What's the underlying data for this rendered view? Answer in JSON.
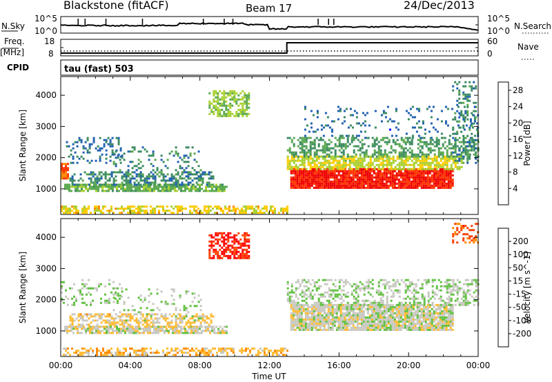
{
  "header": {
    "title": "Blackstone (fitACF)",
    "beam": "Beam 17",
    "date": "24/Dec/2013"
  },
  "noise_panel": {
    "left_label": "N.Sky",
    "left_ticks": [
      "10^5",
      "10^0"
    ],
    "right_ticks": [
      "10^5",
      "10^0"
    ],
    "right_label": "N.Search"
  },
  "freq_panel": {
    "left_label_top": "Freq.",
    "left_label_unit": "[MHz]",
    "left_ticks": [
      "18",
      "8"
    ],
    "right_ticks": [
      "60",
      "0"
    ],
    "right_label": "Nave"
  },
  "cpid": {
    "label": "CPID",
    "value": "tau (fast) 503"
  },
  "x_axis": {
    "label": "Time UT",
    "ticks": [
      "00:00",
      "04:00",
      "08:00",
      "12:00",
      "16:00",
      "20:00",
      "00:00"
    ]
  },
  "colors": {
    "power_scale": [
      "#0000ff",
      "#2060b0",
      "#3a8a60",
      "#5aa850",
      "#a8d030",
      "#ffcc00",
      "#ff8800",
      "#ff3300",
      "#ee0000"
    ],
    "velocity_scale": [
      "#ff0000",
      "#ff4000",
      "#ff8800",
      "#ffbb33",
      "#c8c8c0",
      "#60c040",
      "#308050",
      "#2050b0",
      "#1010cc"
    ]
  },
  "chart_data": [
    {
      "type": "heatmap",
      "panel": "power",
      "ylabel": "Slant Range [km]",
      "yticks": [
        1000,
        2000,
        3000,
        4000
      ],
      "ylim": [
        180,
        4600
      ],
      "xlim": [
        0,
        24
      ],
      "colorbar": {
        "label": "Power [dB]",
        "ticks": [
          4,
          8,
          12,
          16,
          20,
          24,
          28
        ],
        "range": [
          0,
          30
        ]
      },
      "regions": [
        {
          "t": [
            0.2,
            9.5
          ],
          "r": [
            900,
            1100
          ],
          "value": 12,
          "density": 0.8
        },
        {
          "t": [
            0.5,
            8.8
          ],
          "r": [
            1100,
            1500
          ],
          "value": 8,
          "density": 0.5
        },
        {
          "t": [
            0.0,
            0.4
          ],
          "r": [
            1300,
            1800
          ],
          "value": 24,
          "density": 0.9
        },
        {
          "t": [
            0.3,
            3.5
          ],
          "r": [
            1800,
            2600
          ],
          "value": 6,
          "density": 0.25
        },
        {
          "t": [
            3.0,
            8.0
          ],
          "r": [
            1300,
            2300
          ],
          "value": 8,
          "density": 0.18
        },
        {
          "t": [
            8.5,
            10.8
          ],
          "r": [
            3300,
            4100
          ],
          "value": 14,
          "density": 0.6
        },
        {
          "t": [
            0.0,
            13.0
          ],
          "r": [
            200,
            400
          ],
          "value": 18,
          "density": 0.55
        },
        {
          "t": [
            13.2,
            22.5
          ],
          "r": [
            1000,
            1600
          ],
          "value": 27,
          "density": 0.95
        },
        {
          "t": [
            13.0,
            23.0
          ],
          "r": [
            1600,
            2000
          ],
          "value": 16,
          "density": 0.7
        },
        {
          "t": [
            13.0,
            24.0
          ],
          "r": [
            2000,
            2600
          ],
          "value": 10,
          "density": 0.45
        },
        {
          "t": [
            14.0,
            24.0
          ],
          "r": [
            2600,
            3600
          ],
          "value": 6,
          "density": 0.12
        },
        {
          "t": [
            22.5,
            24.0
          ],
          "r": [
            1800,
            4400
          ],
          "value": 8,
          "density": 0.3
        }
      ]
    },
    {
      "type": "heatmap",
      "panel": "velocity",
      "ylabel": "Slant Range [km]",
      "yticks": [
        1000,
        2000,
        3000,
        4000
      ],
      "ylim": [
        180,
        4600
      ],
      "xlim": [
        0,
        24
      ],
      "colorbar": {
        "label": "Velocity [m s^-1]",
        "ticks": [
          200,
          100,
          50,
          15,
          -15,
          -50,
          -100,
          -200
        ],
        "range": [
          -250,
          250
        ]
      },
      "regions": [
        {
          "t": [
            0.2,
            9.5
          ],
          "r": [
            900,
            1100
          ],
          "value": 0,
          "density": 0.8
        },
        {
          "t": [
            0.5,
            8.8
          ],
          "r": [
            1100,
            1500
          ],
          "value": -40,
          "density": 0.5
        },
        {
          "t": [
            0.0,
            3.5
          ],
          "r": [
            1800,
            2600
          ],
          "value": 30,
          "density": 0.2
        },
        {
          "t": [
            3.0,
            8.0
          ],
          "r": [
            1300,
            2300
          ],
          "value": 25,
          "density": 0.15
        },
        {
          "t": [
            8.5,
            10.8
          ],
          "r": [
            3300,
            4100
          ],
          "value": -200,
          "density": 0.6
        },
        {
          "t": [
            0.0,
            13.0
          ],
          "r": [
            200,
            400
          ],
          "value": -60,
          "density": 0.5
        },
        {
          "t": [
            13.2,
            22.5
          ],
          "r": [
            1000,
            1800
          ],
          "value": 0,
          "density": 0.9
        },
        {
          "t": [
            13.0,
            24.0
          ],
          "r": [
            1800,
            2600
          ],
          "value": 20,
          "density": 0.4
        },
        {
          "t": [
            22.5,
            24.0
          ],
          "r": [
            3800,
            4400
          ],
          "value": -150,
          "density": 0.4
        }
      ]
    }
  ]
}
